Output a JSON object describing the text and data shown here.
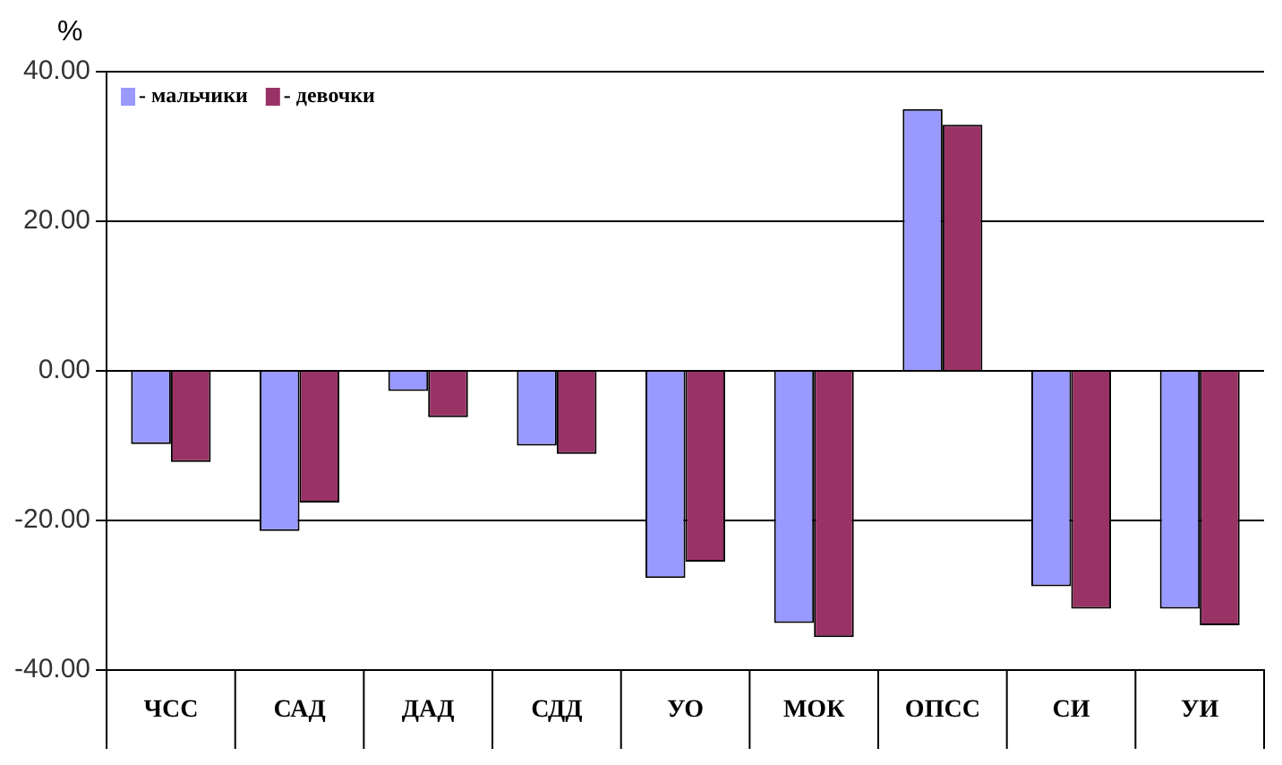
{
  "chart_data": {
    "type": "bar",
    "ylabel": "%",
    "categories": [
      "ЧСС",
      "САД",
      "ДАД",
      "СДД",
      "УО",
      "МОК",
      "ОПСС",
      "СИ",
      "УИ"
    ],
    "series": [
      {
        "name": "- мальчики",
        "color": "#9999ff",
        "values": [
          -9.8,
          -21.4,
          -2.7,
          -10,
          -27.7,
          -33.7,
          35,
          -28.8,
          -31.8
        ]
      },
      {
        "name": "- девочки",
        "color": "#993366",
        "values": [
          -12.2,
          -17.6,
          -6.2,
          -11.1,
          -25.5,
          -35.6,
          32.9,
          -31.8,
          -34
        ]
      }
    ],
    "ylim": [
      -40,
      40
    ],
    "yticks": [
      {
        "value": -40,
        "label": "-40.00"
      },
      {
        "value": -20,
        "label": "-20.00"
      },
      {
        "value": 0,
        "label": "0.00"
      },
      {
        "value": 20,
        "label": "20.00"
      },
      {
        "value": 40,
        "label": "40.00"
      }
    ],
    "grid": "y",
    "legend": "top left"
  }
}
